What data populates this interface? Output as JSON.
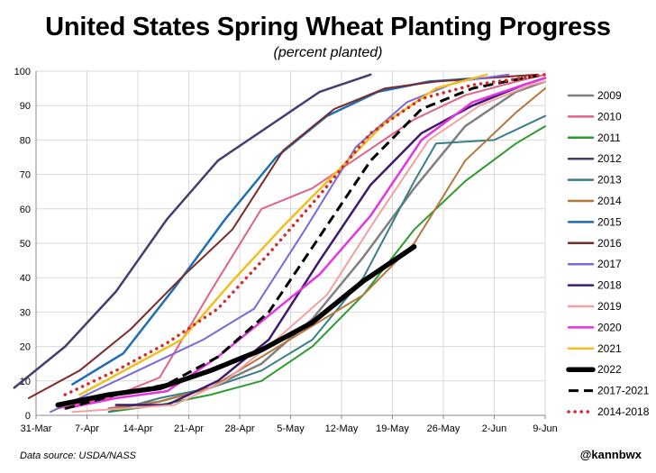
{
  "title": "United States Spring Wheat Planting Progress",
  "subtitle": "(percent planted)",
  "source": "Data source: USDA/NASS",
  "handle": "@kannbwx",
  "chart_data": {
    "type": "line",
    "xlabel": "",
    "ylabel": "",
    "x_range_days": [
      0,
      70
    ],
    "ylim": [
      0,
      100
    ],
    "y_ticks": [
      0,
      10,
      20,
      30,
      40,
      50,
      60,
      70,
      80,
      90,
      100
    ],
    "x_ticks": [
      {
        "day": 0,
        "label": "31-Mar"
      },
      {
        "day": 7,
        "label": "7-Apr"
      },
      {
        "day": 14,
        "label": "14-Apr"
      },
      {
        "day": 21,
        "label": "21-Apr"
      },
      {
        "day": 28,
        "label": "28-Apr"
      },
      {
        "day": 35,
        "label": "5-May"
      },
      {
        "day": 42,
        "label": "12-May"
      },
      {
        "day": 49,
        "label": "19-May"
      },
      {
        "day": 56,
        "label": "26-May"
      },
      {
        "day": 63,
        "label": "2-Jun"
      },
      {
        "day": 70,
        "label": "9-Jun"
      }
    ],
    "grid": true,
    "legend_position": "right",
    "series": [
      {
        "name": "2009",
        "color": "#7f7f7f",
        "width": 2.5,
        "dash": "solid",
        "points": [
          [
            10,
            2
          ],
          [
            17,
            4
          ],
          [
            24,
            8
          ],
          [
            31,
            15
          ],
          [
            38,
            28
          ],
          [
            45,
            46
          ],
          [
            52,
            66
          ],
          [
            59,
            84
          ],
          [
            66,
            94
          ],
          [
            70,
            97
          ]
        ]
      },
      {
        "name": "2010",
        "color": "#e0628a",
        "width": 2,
        "dash": "solid",
        "points": [
          [
            3,
            2
          ],
          [
            10,
            5
          ],
          [
            17,
            11
          ],
          [
            24,
            36
          ],
          [
            31,
            60
          ],
          [
            38,
            66
          ],
          [
            45,
            76
          ],
          [
            52,
            86
          ],
          [
            59,
            93
          ],
          [
            66,
            97
          ],
          [
            70,
            99
          ]
        ]
      },
      {
        "name": "2011",
        "color": "#2e9b2e",
        "width": 2,
        "dash": "solid",
        "points": [
          [
            10,
            1
          ],
          [
            17,
            3
          ],
          [
            24,
            6
          ],
          [
            31,
            10
          ],
          [
            38,
            20
          ],
          [
            45,
            35
          ],
          [
            52,
            54
          ],
          [
            59,
            68
          ],
          [
            66,
            79
          ],
          [
            70,
            84
          ]
        ]
      },
      {
        "name": "2012",
        "color": "#4a3b6e",
        "width": 2.5,
        "dash": "solid",
        "points": [
          [
            -3,
            8
          ],
          [
            4,
            20
          ],
          [
            11,
            36
          ],
          [
            18,
            57
          ],
          [
            25,
            74
          ],
          [
            32,
            84
          ],
          [
            39,
            94
          ],
          [
            46,
            99
          ]
        ]
      },
      {
        "name": "2013",
        "color": "#3a7d87",
        "width": 2,
        "dash": "solid",
        "points": [
          [
            10,
            1
          ],
          [
            17,
            5
          ],
          [
            24,
            8
          ],
          [
            31,
            13
          ],
          [
            38,
            22
          ],
          [
            45,
            40
          ],
          [
            52,
            68
          ],
          [
            55,
            79
          ],
          [
            63,
            80
          ],
          [
            70,
            87
          ]
        ]
      },
      {
        "name": "2014",
        "color": "#b5783c",
        "width": 2,
        "dash": "solid",
        "points": [
          [
            10,
            2
          ],
          [
            17,
            4
          ],
          [
            24,
            8
          ],
          [
            31,
            17
          ],
          [
            38,
            26
          ],
          [
            45,
            35
          ],
          [
            52,
            50
          ],
          [
            59,
            74
          ],
          [
            66,
            88
          ],
          [
            70,
            95
          ]
        ]
      },
      {
        "name": "2015",
        "color": "#1f6db3",
        "width": 2.5,
        "dash": "solid",
        "points": [
          [
            5,
            9
          ],
          [
            12,
            18
          ],
          [
            19,
            37
          ],
          [
            26,
            57
          ],
          [
            33,
            75
          ],
          [
            40,
            87
          ],
          [
            47,
            94
          ],
          [
            54,
            97
          ],
          [
            61,
            98
          ]
        ]
      },
      {
        "name": "2016",
        "color": "#7b2a2a",
        "width": 2,
        "dash": "solid",
        "points": [
          [
            -1,
            5
          ],
          [
            6,
            13
          ],
          [
            13,
            25
          ],
          [
            20,
            40
          ],
          [
            27,
            54
          ],
          [
            34,
            77
          ],
          [
            41,
            89
          ],
          [
            48,
            95
          ],
          [
            55,
            97
          ],
          [
            62,
            98
          ],
          [
            69,
            99
          ]
        ]
      },
      {
        "name": "2017",
        "color": "#7a6ad8",
        "width": 2,
        "dash": "solid",
        "points": [
          [
            2,
            1
          ],
          [
            9,
            8
          ],
          [
            16,
            15
          ],
          [
            23,
            22
          ],
          [
            30,
            31
          ],
          [
            37,
            54
          ],
          [
            44,
            78
          ],
          [
            51,
            91
          ],
          [
            58,
            97
          ],
          [
            65,
            99
          ]
        ]
      },
      {
        "name": "2018",
        "color": "#3d1a6e",
        "width": 2.5,
        "dash": "solid",
        "points": [
          [
            11,
            3
          ],
          [
            18,
            3
          ],
          [
            25,
            10
          ],
          [
            32,
            22
          ],
          [
            39,
            45
          ],
          [
            46,
            67
          ],
          [
            53,
            82
          ],
          [
            60,
            90
          ],
          [
            67,
            96
          ],
          [
            70,
            98
          ]
        ]
      },
      {
        "name": "2019",
        "color": "#f4a0a0",
        "width": 2,
        "dash": "solid",
        "points": [
          [
            5,
            1
          ],
          [
            12,
            2
          ],
          [
            19,
            3
          ],
          [
            26,
            10
          ],
          [
            33,
            22
          ],
          [
            40,
            35
          ],
          [
            47,
            58
          ],
          [
            54,
            80
          ],
          [
            61,
            90
          ],
          [
            68,
            96
          ],
          [
            70,
            97
          ]
        ]
      },
      {
        "name": "2020",
        "color": "#e633e0",
        "width": 2.5,
        "dash": "solid",
        "points": [
          [
            4,
            2
          ],
          [
            11,
            5
          ],
          [
            18,
            7
          ],
          [
            25,
            17
          ],
          [
            32,
            29
          ],
          [
            39,
            41
          ],
          [
            46,
            58
          ],
          [
            53,
            80
          ],
          [
            60,
            91
          ],
          [
            67,
            96
          ],
          [
            70,
            98
          ]
        ]
      },
      {
        "name": "2021",
        "color": "#f0c020",
        "width": 2.5,
        "dash": "solid",
        "points": [
          [
            6,
            6
          ],
          [
            13,
            14
          ],
          [
            20,
            22
          ],
          [
            27,
            39
          ],
          [
            34,
            55
          ],
          [
            41,
            70
          ],
          [
            48,
            85
          ],
          [
            55,
            95
          ],
          [
            62,
            99
          ]
        ]
      },
      {
        "name": "2022",
        "color": "#000000",
        "width": 5.5,
        "dash": "solid",
        "points": [
          [
            3,
            3
          ],
          [
            10,
            6
          ],
          [
            17,
            8
          ],
          [
            24,
            13
          ],
          [
            31,
            19
          ],
          [
            38,
            27
          ],
          [
            45,
            39
          ],
          [
            52,
            49
          ]
        ]
      },
      {
        "name": "2017-2021",
        "color": "#000000",
        "width": 3,
        "dash": "long-dash",
        "points": [
          [
            4,
            2
          ],
          [
            11,
            6
          ],
          [
            18,
            9
          ],
          [
            25,
            17
          ],
          [
            32,
            30
          ],
          [
            39,
            52
          ],
          [
            46,
            74
          ],
          [
            53,
            89
          ],
          [
            60,
            95
          ],
          [
            67,
            98
          ],
          [
            70,
            99
          ]
        ]
      },
      {
        "name": "2014-2018",
        "color": "#d42a2a",
        "width": 3.5,
        "dash": "dots",
        "points": [
          [
            4,
            6
          ],
          [
            11,
            13
          ],
          [
            18,
            21
          ],
          [
            25,
            31
          ],
          [
            32,
            47
          ],
          [
            39,
            64
          ],
          [
            46,
            82
          ],
          [
            53,
            92
          ],
          [
            60,
            96
          ],
          [
            67,
            98
          ],
          [
            70,
            99
          ]
        ]
      }
    ]
  }
}
